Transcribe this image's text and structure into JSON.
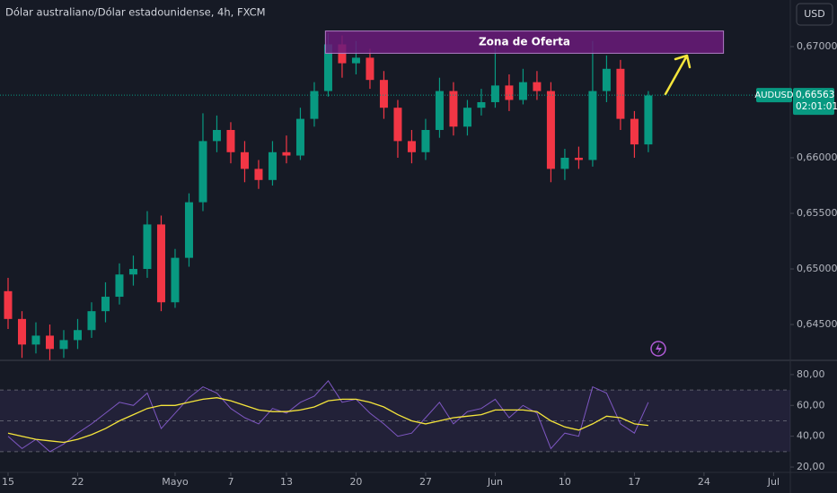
{
  "header": {
    "title": "Dólar australiano/Dólar estadounidense, 4h, FXCM",
    "currency": "USD"
  },
  "chart_data": [
    {
      "type": "candlestick",
      "x": [
        0,
        1,
        2,
        3,
        4,
        5,
        6,
        7,
        8,
        9,
        10,
        11,
        12,
        13,
        14,
        15,
        16,
        17,
        18,
        19,
        20,
        21,
        22,
        23,
        24,
        25,
        26,
        27,
        28,
        29,
        30,
        31,
        32,
        33,
        34,
        35,
        36,
        37,
        38,
        39,
        40,
        41,
        42,
        43,
        44,
        45,
        46
      ],
      "open": [
        0.648,
        0.6455,
        0.6432,
        0.644,
        0.6428,
        0.6436,
        0.6445,
        0.6462,
        0.6475,
        0.6495,
        0.65,
        0.654,
        0.647,
        0.651,
        0.656,
        0.6615,
        0.6625,
        0.6605,
        0.659,
        0.658,
        0.6605,
        0.6602,
        0.6635,
        0.666,
        0.6702,
        0.6685,
        0.669,
        0.667,
        0.6645,
        0.6615,
        0.6605,
        0.6625,
        0.666,
        0.6628,
        0.6645,
        0.665,
        0.6665,
        0.6652,
        0.6668,
        0.666,
        0.659,
        0.66,
        0.6598,
        0.666,
        0.668,
        0.6635,
        0.6612
      ],
      "high": [
        0.6492,
        0.6462,
        0.6452,
        0.645,
        0.6445,
        0.6455,
        0.647,
        0.6488,
        0.6505,
        0.6512,
        0.6552,
        0.6548,
        0.6518,
        0.6568,
        0.664,
        0.6638,
        0.6632,
        0.6615,
        0.6598,
        0.6615,
        0.662,
        0.6645,
        0.6668,
        0.6712,
        0.671,
        0.6705,
        0.6698,
        0.6678,
        0.6652,
        0.6625,
        0.6635,
        0.6672,
        0.6668,
        0.6652,
        0.6662,
        0.67,
        0.6675,
        0.668,
        0.6678,
        0.6668,
        0.6608,
        0.661,
        0.6705,
        0.6692,
        0.6688,
        0.6642,
        0.666
      ],
      "low": [
        0.6446,
        0.642,
        0.6424,
        0.6418,
        0.642,
        0.6428,
        0.6438,
        0.6452,
        0.6468,
        0.6485,
        0.6492,
        0.6462,
        0.6465,
        0.6502,
        0.6552,
        0.6605,
        0.6595,
        0.6578,
        0.6572,
        0.6575,
        0.6595,
        0.6598,
        0.6628,
        0.6655,
        0.6672,
        0.6675,
        0.6662,
        0.6635,
        0.66,
        0.6595,
        0.6598,
        0.6618,
        0.662,
        0.662,
        0.6638,
        0.6645,
        0.6642,
        0.6648,
        0.6652,
        0.6578,
        0.658,
        0.659,
        0.6592,
        0.665,
        0.6625,
        0.66,
        0.6605
      ],
      "close": [
        0.6455,
        0.6432,
        0.644,
        0.6428,
        0.6436,
        0.6445,
        0.6462,
        0.6475,
        0.6495,
        0.65,
        0.654,
        0.647,
        0.651,
        0.656,
        0.6615,
        0.6625,
        0.6605,
        0.659,
        0.658,
        0.6605,
        0.6602,
        0.6635,
        0.666,
        0.6702,
        0.6685,
        0.669,
        0.667,
        0.6645,
        0.6615,
        0.6605,
        0.6625,
        0.666,
        0.6628,
        0.6645,
        0.665,
        0.6665,
        0.6652,
        0.6668,
        0.666,
        0.659,
        0.66,
        0.6598,
        0.666,
        0.668,
        0.6635,
        0.6612,
        0.6656
      ],
      "up_color": "#089981",
      "down_color": "#f23645",
      "xlim": [
        -0.58,
        56.2
      ],
      "ylim": [
        0.64194,
        0.67419
      ],
      "yticks": [
        {
          "value": 0.67,
          "label": "0,67000"
        },
        {
          "value": 0.66,
          "label": "0,66000"
        },
        {
          "value": 0.655,
          "label": "0,65500"
        },
        {
          "value": 0.65,
          "label": "0,65000"
        },
        {
          "value": 0.645,
          "label": "0,64500"
        }
      ],
      "last_price": {
        "value": 0.66563,
        "label": "0,66563"
      },
      "symbol": "AUDUSD",
      "countdown": "02:01:01",
      "zone": {
        "label": "Zona de Oferta",
        "x0": 22.8,
        "x1": 51.4,
        "y0": 0.6694,
        "y1": 0.6714,
        "color": "#6a1b7a"
      }
    },
    {
      "type": "line",
      "x": [
        0,
        1,
        2,
        3,
        4,
        5,
        6,
        7,
        8,
        9,
        10,
        11,
        12,
        13,
        14,
        15,
        16,
        17,
        18,
        19,
        20,
        21,
        22,
        23,
        24,
        25,
        26,
        27,
        28,
        29,
        30,
        31,
        32,
        33,
        34,
        35,
        36,
        37,
        38,
        39,
        40,
        41,
        42,
        43,
        44,
        45,
        46
      ],
      "series": [
        {
          "color": "#7e57c2",
          "values": [
            40,
            32,
            38,
            30,
            35,
            42,
            48,
            55,
            62,
            60,
            68,
            45,
            55,
            65,
            72,
            68,
            58,
            52,
            48,
            58,
            55,
            62,
            66,
            76,
            62,
            64,
            55,
            48,
            40,
            42,
            52,
            62,
            48,
            56,
            58,
            64,
            52,
            60,
            55,
            32,
            42,
            40,
            72,
            68,
            48,
            42,
            62
          ]
        },
        {
          "color": "#f5e53b",
          "values": [
            42,
            40,
            38,
            37,
            36,
            38,
            41,
            45,
            50,
            54,
            58,
            60,
            60,
            62,
            64,
            65,
            63,
            60,
            57,
            56,
            56,
            57,
            59,
            63,
            64,
            64,
            62,
            59,
            54,
            50,
            48,
            50,
            52,
            53,
            54,
            57,
            57,
            57,
            56,
            50,
            46,
            44,
            48,
            53,
            52,
            48,
            47
          ]
        }
      ],
      "levels": [
        70,
        50,
        30
      ],
      "xlim": [
        -0.58,
        56.2
      ],
      "ylim": [
        17.7,
        87.5
      ],
      "yticks": [
        {
          "value": 80,
          "label": "80,00"
        },
        {
          "value": 60,
          "label": "60,00"
        },
        {
          "value": 40,
          "label": "40,00"
        },
        {
          "value": 20,
          "label": "20,00"
        }
      ],
      "xticks": [
        {
          "value": 0,
          "label": "15"
        },
        {
          "value": 5,
          "label": "22"
        },
        {
          "value": 12,
          "label": "Mayo"
        },
        {
          "value": 16,
          "label": "7"
        },
        {
          "value": 20,
          "label": "13"
        },
        {
          "value": 25,
          "label": "20"
        },
        {
          "value": 30,
          "label": "27"
        },
        {
          "value": 35,
          "label": "Jun"
        },
        {
          "value": 40,
          "label": "10"
        },
        {
          "value": 45,
          "label": "17"
        },
        {
          "value": 50,
          "label": "24"
        },
        {
          "value": 55,
          "label": "Jul"
        }
      ]
    }
  ]
}
